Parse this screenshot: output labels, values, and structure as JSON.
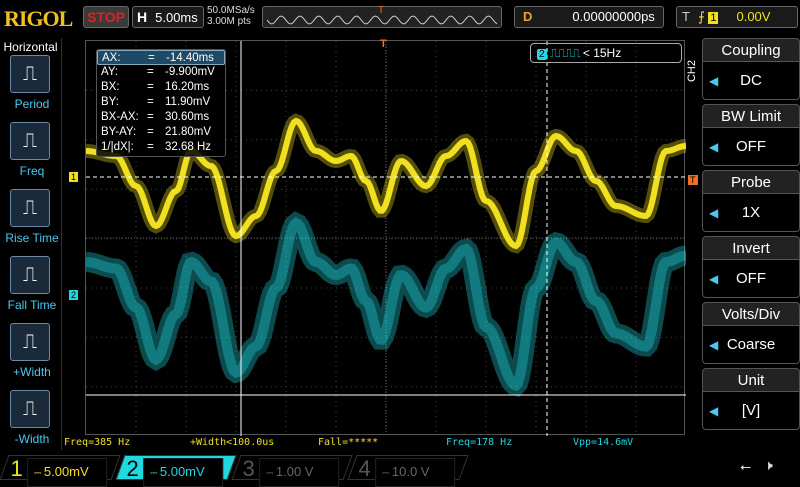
{
  "header": {
    "brand": "RIGOL",
    "run_state": "STOP",
    "timebase_label": "H",
    "timebase": "5.00ms",
    "sample_rate": "50.0MSa/s",
    "memory_depth": "3.00M pts",
    "delay_label": "D",
    "delay": "0.00000000ps",
    "trigger_label": "T",
    "trigger_source": "1",
    "trigger_level": "0.00V",
    "trigger_marker": "T"
  },
  "left_menu": {
    "title": "Horizontal",
    "items": [
      {
        "label": "Period",
        "icon": "period-icon"
      },
      {
        "label": "Freq",
        "icon": "freq-icon"
      },
      {
        "label": "Rise Time",
        "icon": "rise-time-icon"
      },
      {
        "label": "Fall Time",
        "icon": "fall-time-icon"
      },
      {
        "label": "+Width",
        "icon": "positive-width-icon"
      },
      {
        "label": "-Width",
        "icon": "negative-width-icon"
      }
    ]
  },
  "cursor": {
    "rows": [
      {
        "k": "AX:",
        "v": "-14.40ms"
      },
      {
        "k": "AY:",
        "v": "-9.900mV"
      },
      {
        "k": "BX:",
        "v": "16.20ms"
      },
      {
        "k": "BY:",
        "v": "11.90mV"
      },
      {
        "k": "BX-AX:",
        "v": "30.60ms"
      },
      {
        "k": "BY-AY:",
        "v": "21.80mV"
      },
      {
        "k": "1/|dX|:",
        "v": "32.68 Hz"
      }
    ],
    "eq": "="
  },
  "ch2_trigger": {
    "source": "2",
    "condition": "< 15Hz"
  },
  "right_menu": {
    "channel": "CH2",
    "items": [
      {
        "title": "Coupling",
        "value": "DC"
      },
      {
        "title": "BW Limit",
        "value": "OFF"
      },
      {
        "title": "Probe",
        "value": "1X"
      },
      {
        "title": "Invert",
        "value": "OFF"
      },
      {
        "title": "Volts/Div",
        "value": "Coarse"
      },
      {
        "title": "Unit",
        "value": "[V]"
      }
    ]
  },
  "measurements": [
    "Freq=385 Hz",
    "+Width<100.0us",
    "Fall=*****",
    "Freq=178 Hz",
    "Vpp=14.6mV"
  ],
  "channels": [
    {
      "num": "1",
      "scale": "5.00mV",
      "color": "#f0e020",
      "active": true
    },
    {
      "num": "2",
      "scale": "5.00mV",
      "color": "#20d8e0",
      "active": true
    },
    {
      "num": "3",
      "scale": "1.00 V",
      "color": "#c020c0",
      "active": false
    },
    {
      "num": "4",
      "scale": "10.0 V",
      "color": "#2060d0",
      "active": false
    }
  ],
  "markers": {
    "ch1": "1",
    "ch2": "2"
  },
  "colors": {
    "ch1": "#f0e020",
    "ch2": "#20d8e0",
    "accent": "#4ac8f0",
    "trigger": "#f07020"
  }
}
